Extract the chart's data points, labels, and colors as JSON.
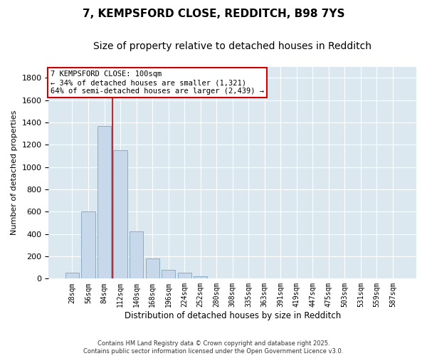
{
  "title_line1": "7, KEMPSFORD CLOSE, REDDITCH, B98 7YS",
  "title_line2": "Size of property relative to detached houses in Redditch",
  "xlabel": "Distribution of detached houses by size in Redditch",
  "ylabel": "Number of detached properties",
  "bar_color": "#c8d8eb",
  "bar_edge_color": "#8aaec8",
  "background_color": "#dce8f0",
  "grid_color": "#ffffff",
  "categories": [
    "28sqm",
    "56sqm",
    "84sqm",
    "112sqm",
    "140sqm",
    "168sqm",
    "196sqm",
    "224sqm",
    "252sqm",
    "280sqm",
    "308sqm",
    "335sqm",
    "363sqm",
    "391sqm",
    "419sqm",
    "447sqm",
    "475sqm",
    "503sqm",
    "531sqm",
    "559sqm",
    "587sqm"
  ],
  "values": [
    50,
    600,
    1370,
    1150,
    420,
    180,
    80,
    50,
    20,
    5,
    2,
    0,
    0,
    0,
    0,
    0,
    0,
    0,
    0,
    0,
    0
  ],
  "vline_color": "#cc0000",
  "vline_xindex": 2.5,
  "annotation_box_text": "7 KEMPSFORD CLOSE: 100sqm\n← 34% of detached houses are smaller (1,321)\n64% of semi-detached houses are larger (2,439) →",
  "annotation_fontsize": 7.5,
  "title_fontsize1": 11,
  "title_fontsize2": 10,
  "footer_text": "Contains HM Land Registry data © Crown copyright and database right 2025.\nContains public sector information licensed under the Open Government Licence v3.0.",
  "ylim": [
    0,
    1900
  ],
  "yticks": [
    0,
    200,
    400,
    600,
    800,
    1000,
    1200,
    1400,
    1600,
    1800
  ]
}
